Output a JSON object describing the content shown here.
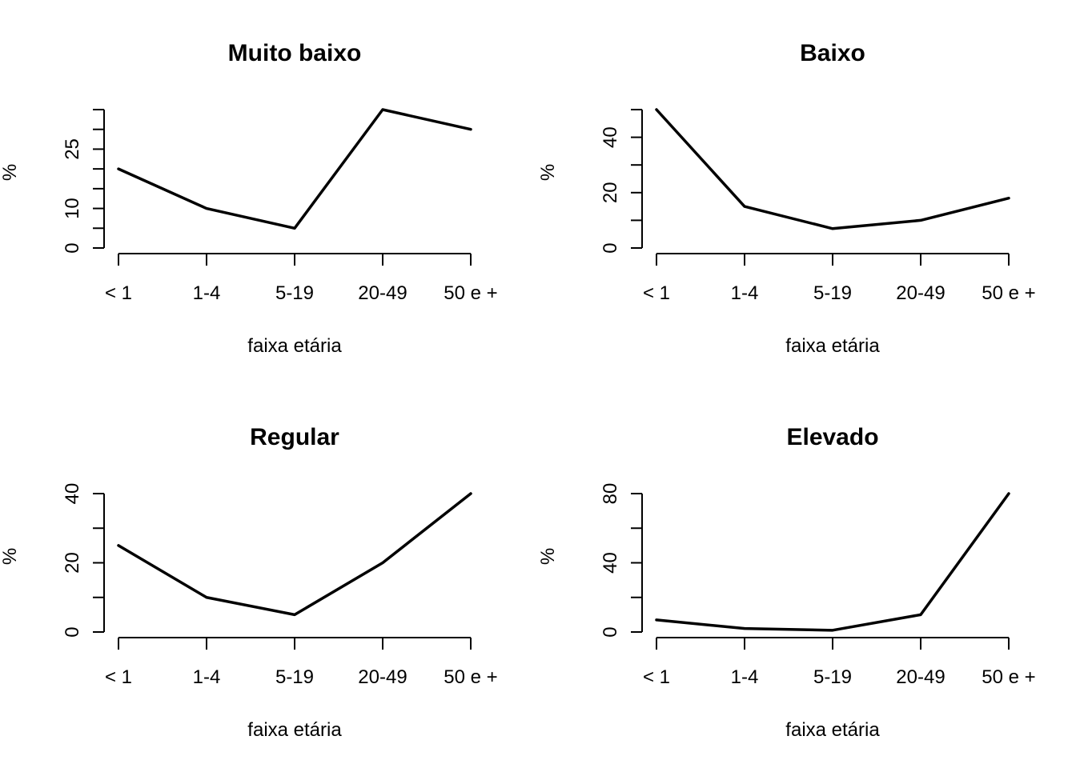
{
  "chart_data": [
    {
      "type": "line",
      "title": "Muito baixo",
      "xlabel": "faixa etária",
      "ylabel": "%",
      "categories": [
        "< 1",
        "1-4",
        "5-19",
        "20-49",
        "50 e +"
      ],
      "values": [
        20,
        10,
        5,
        35,
        30
      ],
      "ylim": [
        0,
        35
      ],
      "yticks": [
        0,
        5,
        10,
        15,
        20,
        25,
        30,
        35
      ],
      "ytick_labels": [
        "0",
        "",
        "10",
        "",
        "",
        "25",
        "",
        ""
      ]
    },
    {
      "type": "line",
      "title": "Baixo",
      "xlabel": "faixa etária",
      "ylabel": "%",
      "categories": [
        "< 1",
        "1-4",
        "5-19",
        "20-49",
        "50 e +"
      ],
      "values": [
        50,
        15,
        7,
        10,
        18
      ],
      "ylim": [
        0,
        50
      ],
      "yticks": [
        0,
        10,
        20,
        30,
        40,
        50
      ],
      "ytick_labels": [
        "0",
        "",
        "20",
        "",
        "40",
        ""
      ]
    },
    {
      "type": "line",
      "title": "Regular",
      "xlabel": "faixa etária",
      "ylabel": "%",
      "categories": [
        "< 1",
        "1-4",
        "5-19",
        "20-49",
        "50 e +"
      ],
      "values": [
        25,
        10,
        5,
        20,
        40
      ],
      "ylim": [
        0,
        40
      ],
      "yticks": [
        0,
        10,
        20,
        30,
        40
      ],
      "ytick_labels": [
        "0",
        "",
        "20",
        "",
        "40"
      ]
    },
    {
      "type": "line",
      "title": "Elevado",
      "xlabel": "faixa etária",
      "ylabel": "%",
      "categories": [
        "< 1",
        "1-4",
        "5-19",
        "20-49",
        "50 e +"
      ],
      "values": [
        7,
        2,
        1,
        10,
        80
      ],
      "ylim": [
        0,
        80
      ],
      "yticks": [
        0,
        20,
        40,
        60,
        80
      ],
      "ytick_labels": [
        "0",
        "",
        "40",
        "",
        "80"
      ]
    }
  ]
}
